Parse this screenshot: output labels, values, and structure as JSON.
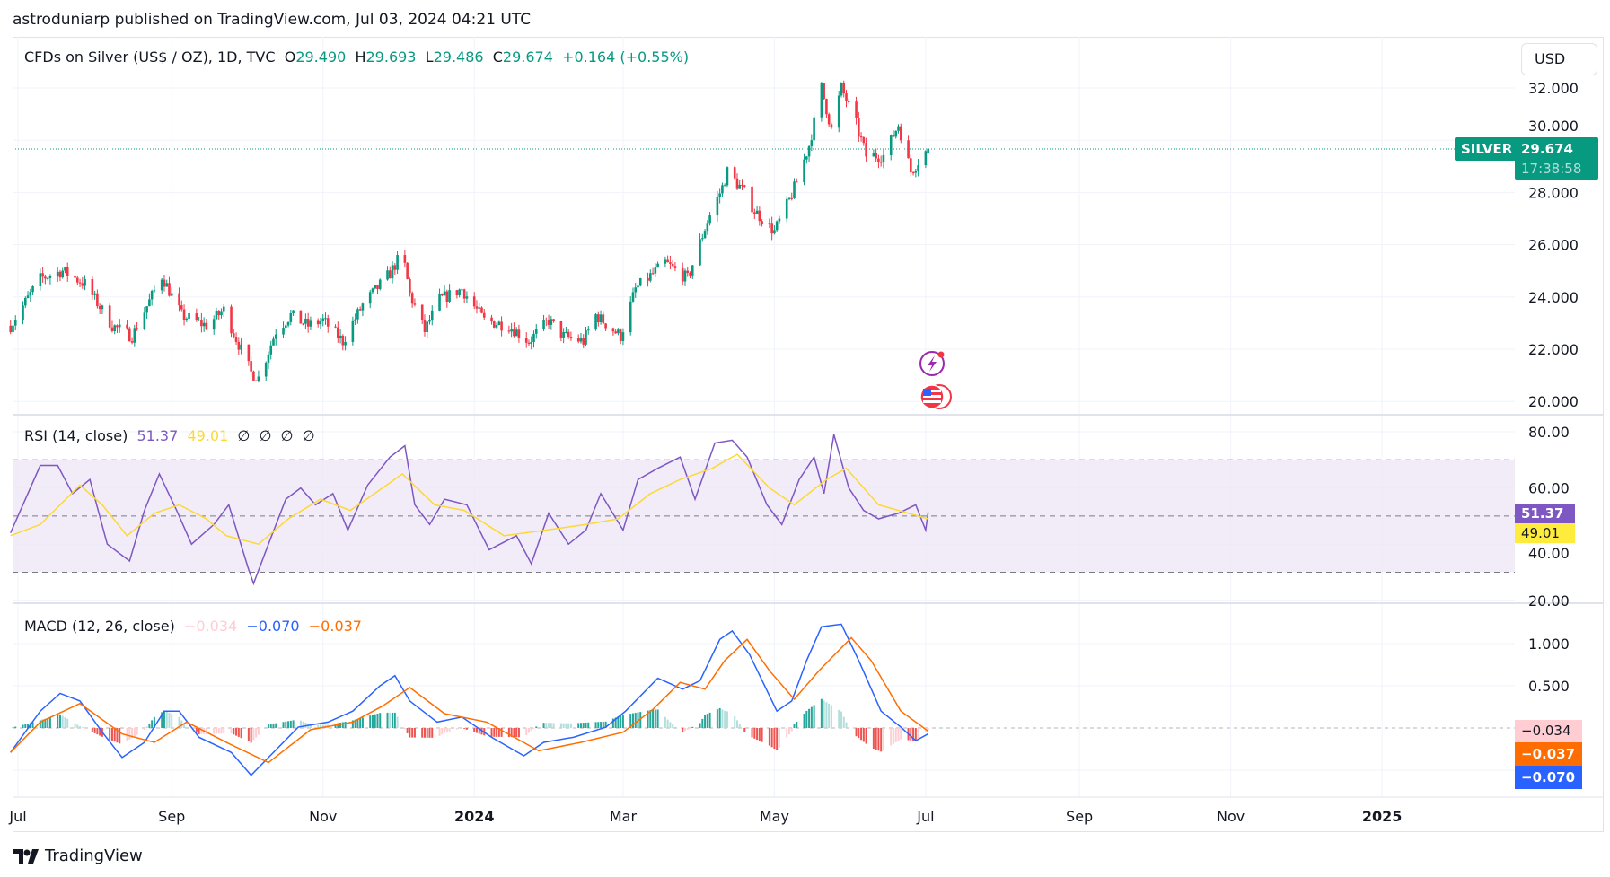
{
  "header": {
    "publisher": "astroduniarp published on TradingView.com, Jul 03, 2024 04:21 UTC"
  },
  "legend": {
    "symbol": "CFDs on Silver (US$ / OZ), 1D, TVC",
    "o_label": "O",
    "o": "29.490",
    "h_label": "H",
    "h": "29.693",
    "l_label": "L",
    "l": "29.486",
    "c_label": "C",
    "c": "29.674",
    "change": "+0.164 (+0.55%)"
  },
  "currency_button": "USD",
  "price_tag": {
    "symbol": "SILVER",
    "price": "29.674",
    "countdown": "17:38:58"
  },
  "colors": {
    "up": "#089981",
    "down": "#f23645",
    "rsi": "#7e57c2",
    "rsi_ma": "#fdd835",
    "macd": "#2962ff",
    "signal": "#ff6d00",
    "hist_up": "#26a69a",
    "hist_down": "#ef5350",
    "band": "#ede7f6"
  },
  "rsi": {
    "title": "RSI (14, close)",
    "value": "51.37",
    "ma_value": "49.01",
    "placeholders": [
      "∅",
      "∅",
      "∅",
      "∅"
    ]
  },
  "macd": {
    "title": "MACD (12, 26, close)",
    "hist_value": "−0.034",
    "macd_value": "−0.070",
    "signal_value": "−0.037"
  },
  "footer": {
    "brand": "TradingView"
  },
  "chart_data": [
    {
      "type": "candlestick",
      "title": "CFDs on Silver (US$ / OZ), 1D, TVC",
      "ylim": [
        20,
        32.5
      ],
      "y_ticks": [
        "32.000",
        "30.000",
        "28.000",
        "26.000",
        "24.000",
        "22.000",
        "20.000"
      ],
      "x_ticks": [
        "Jul",
        "Sep",
        "Nov",
        "2024",
        "Mar",
        "May",
        "Jul",
        "Sep",
        "Nov",
        "2025"
      ],
      "close_path": {
        "dates": [
          "2023-06-28",
          "2023-07-10",
          "2023-07-19",
          "2023-07-28",
          "2023-08-08",
          "2023-08-16",
          "2023-08-28",
          "2023-09-05",
          "2023-09-15",
          "2023-09-22",
          "2023-10-03",
          "2023-10-06",
          "2023-10-13",
          "2023-10-19",
          "2023-10-26",
          "2023-11-01",
          "2023-11-09",
          "2023-11-17",
          "2023-11-28",
          "2023-12-03",
          "2023-12-06",
          "2023-12-12",
          "2023-12-18",
          "2023-12-27",
          "2024-01-05",
          "2024-01-15",
          "2024-01-23",
          "2024-01-31",
          "2024-02-06",
          "2024-02-14",
          "2024-02-19",
          "2024-02-29",
          "2024-03-06",
          "2024-03-18",
          "2024-03-27",
          "2024-04-04",
          "2024-04-10",
          "2024-04-12",
          "2024-04-19",
          "2024-04-23",
          "2024-05-01",
          "2024-05-07",
          "2024-05-10",
          "2024-05-15",
          "2024-05-20",
          "2024-05-24",
          "2024-05-28",
          "2024-06-03",
          "2024-06-07",
          "2024-06-14",
          "2024-06-20",
          "2024-06-25",
          "2024-06-28",
          "2024-07-02"
        ],
        "close": [
          22.9,
          24.7,
          25.0,
          24.5,
          22.9,
          22.5,
          24.8,
          23.3,
          22.9,
          23.5,
          21.1,
          20.9,
          22.7,
          23.3,
          22.9,
          23.1,
          22.3,
          23.7,
          24.9,
          25.7,
          24.1,
          22.7,
          23.9,
          24.3,
          23.1,
          22.9,
          22.3,
          23.1,
          22.5,
          22.3,
          23.3,
          22.5,
          24.3,
          25.3,
          24.7,
          26.9,
          28.2,
          28.8,
          28.0,
          27.3,
          26.5,
          27.7,
          28.4,
          29.8,
          32.0,
          30.4,
          32.0,
          30.6,
          29.4,
          29.4,
          30.6,
          28.8,
          29.2,
          29.674
        ]
      },
      "last": {
        "open": 29.49,
        "high": 29.693,
        "low": 29.486,
        "close": 29.674
      }
    },
    {
      "type": "line",
      "name": "RSI (14, close)",
      "ylim": [
        20,
        80
      ],
      "y_ticks": [
        "80.00",
        "60.00",
        "40.00",
        "20.00"
      ],
      "bands": [
        30,
        50,
        70
      ],
      "dates": [
        "2023-06-28",
        "2023-07-10",
        "2023-07-17",
        "2023-07-23",
        "2023-07-30",
        "2023-08-06",
        "2023-08-15",
        "2023-08-21",
        "2023-08-27",
        "2023-09-03",
        "2023-09-09",
        "2023-09-18",
        "2023-09-24",
        "2023-10-02",
        "2023-10-04",
        "2023-10-10",
        "2023-10-17",
        "2023-10-23",
        "2023-10-29",
        "2023-11-05",
        "2023-11-11",
        "2023-11-19",
        "2023-11-28",
        "2023-12-04",
        "2023-12-08",
        "2023-12-14",
        "2023-12-20",
        "2023-12-29",
        "2024-01-07",
        "2024-01-18",
        "2024-01-24",
        "2024-01-31",
        "2024-02-08",
        "2024-02-15",
        "2024-02-21",
        "2024-03-01",
        "2024-03-07",
        "2024-03-15",
        "2024-03-24",
        "2024-03-30",
        "2024-04-07",
        "2024-04-14",
        "2024-04-20",
        "2024-04-28",
        "2024-05-04",
        "2024-05-11",
        "2024-05-17",
        "2024-05-21",
        "2024-05-25",
        "2024-05-31",
        "2024-06-06",
        "2024-06-12",
        "2024-06-20",
        "2024-06-27",
        "2024-07-01",
        "2024-07-02"
      ],
      "values": [
        44,
        68,
        68,
        58,
        63,
        40,
        34,
        52,
        65,
        52,
        40,
        47,
        54,
        31,
        26,
        40,
        56,
        60,
        54,
        58,
        45,
        61,
        71,
        75,
        54,
        47,
        56,
        54,
        38,
        43,
        33,
        51,
        40,
        45,
        58,
        45,
        63,
        67,
        71,
        56,
        76,
        77,
        71,
        54,
        47,
        63,
        71,
        58,
        79,
        60,
        52,
        49,
        51,
        54,
        45,
        51.37
      ],
      "ma": {
        "dates": [
          "2023-06-28",
          "2023-07-10",
          "2023-07-26",
          "2023-08-04",
          "2023-08-14",
          "2023-08-25",
          "2023-09-04",
          "2023-09-15",
          "2023-09-23",
          "2023-10-06",
          "2023-10-18",
          "2023-10-31",
          "2023-11-12",
          "2023-11-25",
          "2023-12-03",
          "2023-12-16",
          "2023-12-28",
          "2024-01-13",
          "2024-01-30",
          "2024-02-15",
          "2024-02-28",
          "2024-03-12",
          "2024-03-24",
          "2024-04-06",
          "2024-04-16",
          "2024-04-29",
          "2024-05-09",
          "2024-05-22",
          "2024-05-30",
          "2024-06-12",
          "2024-06-24",
          "2024-07-02"
        ],
        "values": [
          43,
          47,
          61,
          54,
          43,
          51,
          54,
          49,
          43,
          40,
          49,
          56,
          52,
          60,
          65,
          54,
          52,
          43,
          45,
          47,
          49,
          58,
          63,
          67,
          72,
          60,
          54,
          63,
          67,
          54,
          51,
          49.01
        ]
      }
    },
    {
      "type": "line+histogram",
      "name": "MACD (12, 26, close)",
      "y_ticks": [
        "1.000",
        "0.500"
      ],
      "macd": {
        "dates": [
          "2023-06-28",
          "2023-07-10",
          "2023-07-18",
          "2023-07-26",
          "2023-08-04",
          "2023-08-12",
          "2023-08-21",
          "2023-08-29",
          "2023-09-04",
          "2023-09-12",
          "2023-09-25",
          "2023-10-03",
          "2023-10-12",
          "2023-10-22",
          "2023-11-03",
          "2023-11-13",
          "2023-11-24",
          "2023-11-30",
          "2023-12-06",
          "2023-12-17",
          "2023-12-27",
          "2024-01-08",
          "2024-01-21",
          "2024-01-29",
          "2024-02-10",
          "2024-02-23",
          "2024-03-02",
          "2024-03-15",
          "2024-03-25",
          "2024-04-01",
          "2024-04-09",
          "2024-04-14",
          "2024-04-21",
          "2024-05-02",
          "2024-05-08",
          "2024-05-14",
          "2024-05-20",
          "2024-05-28",
          "2024-06-04",
          "2024-06-13",
          "2024-06-21",
          "2024-06-27",
          "2024-07-02"
        ],
        "values": [
          -0.29,
          0.2,
          0.41,
          0.32,
          -0.05,
          -0.35,
          -0.17,
          0.2,
          0.2,
          -0.11,
          -0.29,
          -0.56,
          -0.29,
          0.01,
          0.07,
          0.2,
          0.5,
          0.62,
          0.32,
          0.07,
          0.13,
          -0.11,
          -0.33,
          -0.17,
          -0.11,
          0.01,
          0.2,
          0.59,
          0.46,
          0.56,
          1.05,
          1.15,
          0.87,
          0.2,
          0.32,
          0.8,
          1.2,
          1.23,
          0.8,
          0.2,
          0.01,
          -0.15,
          -0.07
        ]
      },
      "signal": {
        "dates": [
          "2023-06-28",
          "2023-07-10",
          "2023-07-26",
          "2023-08-12",
          "2023-08-25",
          "2023-09-07",
          "2023-09-23",
          "2023-10-10",
          "2023-10-27",
          "2023-11-13",
          "2023-11-25",
          "2023-12-06",
          "2023-12-20",
          "2024-01-06",
          "2024-01-27",
          "2024-02-13",
          "2024-03-01",
          "2024-03-13",
          "2024-03-24",
          "2024-04-03",
          "2024-04-11",
          "2024-04-20",
          "2024-04-29",
          "2024-05-09",
          "2024-05-19",
          "2024-06-01",
          "2024-06-09",
          "2024-06-21",
          "2024-07-02"
        ],
        "values": [
          -0.29,
          0.07,
          0.29,
          -0.07,
          -0.17,
          0.07,
          -0.17,
          -0.41,
          -0.02,
          0.07,
          0.26,
          0.48,
          0.17,
          0.07,
          -0.27,
          -0.17,
          -0.05,
          0.22,
          0.54,
          0.46,
          0.8,
          1.05,
          0.68,
          0.34,
          0.68,
          1.07,
          0.8,
          0.2,
          -0.037
        ]
      }
    }
  ]
}
